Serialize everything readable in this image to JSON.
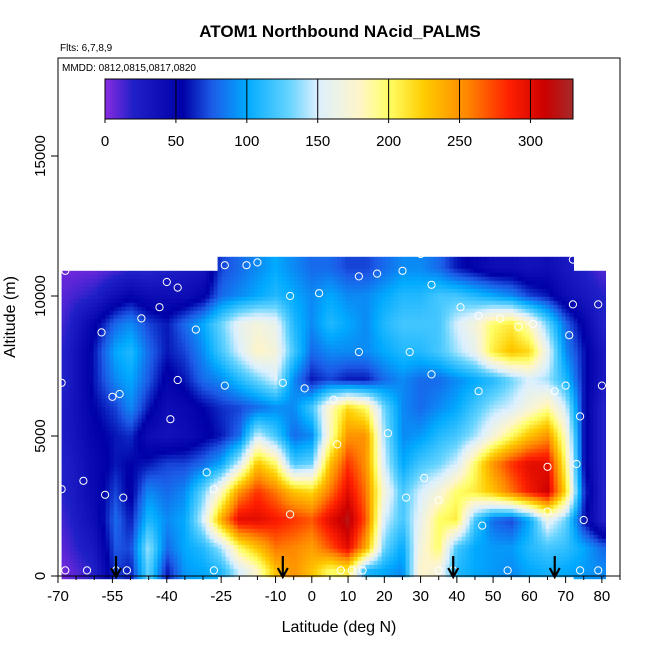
{
  "chart_data": {
    "type": "heatmap",
    "title": "ATOM1 Northbound NAcid_PALMS",
    "flights_note": "Flts: 6,7,8,9",
    "dates_note": "MMDD: 0812,0815,0817,0820",
    "xlabel": "Latitude (deg N)",
    "ylabel": "Altitude (m)",
    "xlim": [
      -70,
      85
    ],
    "ylim": [
      0,
      18500
    ],
    "x_ticks": [
      "-70",
      "-55",
      "-40",
      "-25",
      "-10",
      "0",
      "10",
      "20",
      "30",
      "40",
      "50",
      "60",
      "70",
      "80"
    ],
    "x_tick_values": [
      -70,
      -55,
      -40,
      -25,
      -10,
      0,
      10,
      20,
      30,
      40,
      50,
      60,
      70,
      80
    ],
    "x_minor_ticks": [
      -65,
      -60,
      -50,
      -45,
      -35,
      -30,
      -20,
      -15,
      -5,
      5,
      15,
      25,
      35,
      45,
      55,
      65,
      75,
      85
    ],
    "y_ticks": [
      "0",
      "5000",
      "10000",
      "15000"
    ],
    "y_tick_values": [
      0,
      5000,
      10000,
      15000
    ],
    "colorbar": {
      "range": [
        0,
        330
      ],
      "ticks": [
        "0",
        "50",
        "100",
        "150",
        "200",
        "250",
        "300"
      ],
      "tick_values": [
        0,
        50,
        100,
        150,
        200,
        250,
        300
      ]
    },
    "color_stops": [
      {
        "v": 0,
        "c": "#8a2be2"
      },
      {
        "v": 20,
        "c": "#2020c8"
      },
      {
        "v": 55,
        "c": "#0000a8"
      },
      {
        "v": 75,
        "c": "#1c5ae6"
      },
      {
        "v": 100,
        "c": "#00aaff"
      },
      {
        "v": 130,
        "c": "#66d4ff"
      },
      {
        "v": 150,
        "c": "#dcf0ff"
      },
      {
        "v": 180,
        "c": "#fff5c8"
      },
      {
        "v": 200,
        "c": "#ffff66"
      },
      {
        "v": 225,
        "c": "#ffcc00"
      },
      {
        "v": 255,
        "c": "#ff8800"
      },
      {
        "v": 285,
        "c": "#ff2000"
      },
      {
        "v": 310,
        "c": "#cc0000"
      },
      {
        "v": 330,
        "c": "#a52a2a"
      }
    ],
    "grid_lat": [
      -68,
      -60,
      -54,
      -50,
      -45,
      -40,
      -35,
      -30,
      -25,
      -20,
      -15,
      -10,
      -5,
      0,
      5,
      10,
      15,
      20,
      25,
      30,
      35,
      40,
      45,
      50,
      55,
      60,
      65,
      70,
      75,
      80
    ],
    "grid_alt": [
      200,
      1000,
      2000,
      3000,
      4000,
      5000,
      6000,
      7000,
      8000,
      9000,
      10000,
      11000
    ],
    "values": [
      [
        5,
        20,
        70,
        60,
        130,
        60,
        95,
        100,
        110,
        150,
        180,
        230,
        250,
        230,
        200,
        210,
        110,
        100,
        90,
        180,
        170,
        110,
        100,
        95,
        90,
        100,
        105,
        100,
        95,
        90
      ],
      [
        10,
        30,
        75,
        70,
        140,
        80,
        100,
        110,
        140,
        200,
        230,
        260,
        255,
        245,
        270,
        300,
        240,
        130,
        100,
        170,
        200,
        120,
        100,
        95,
        95,
        110,
        120,
        115,
        100,
        80
      ],
      [
        15,
        40,
        80,
        60,
        110,
        90,
        100,
        150,
        240,
        300,
        300,
        290,
        280,
        270,
        300,
        320,
        270,
        150,
        120,
        160,
        200,
        210,
        120,
        80,
        70,
        100,
        160,
        130,
        60,
        20
      ],
      [
        20,
        45,
        70,
        50,
        90,
        80,
        90,
        130,
        180,
        250,
        280,
        260,
        230,
        220,
        260,
        300,
        260,
        170,
        120,
        150,
        170,
        200,
        210,
        230,
        260,
        290,
        310,
        220,
        70,
        20
      ],
      [
        20,
        45,
        60,
        55,
        60,
        70,
        70,
        80,
        100,
        150,
        230,
        200,
        120,
        130,
        230,
        280,
        250,
        150,
        100,
        120,
        130,
        150,
        200,
        250,
        280,
        300,
        300,
        200,
        60,
        20
      ],
      [
        25,
        50,
        60,
        65,
        40,
        35,
        40,
        50,
        60,
        80,
        150,
        120,
        80,
        90,
        180,
        250,
        250,
        140,
        90,
        95,
        110,
        120,
        140,
        170,
        200,
        230,
        250,
        180,
        60,
        20
      ],
      [
        25,
        55,
        70,
        90,
        60,
        40,
        45,
        55,
        65,
        70,
        80,
        90,
        90,
        120,
        180,
        220,
        200,
        130,
        90,
        80,
        90,
        100,
        120,
        140,
        150,
        170,
        190,
        150,
        60,
        20
      ],
      [
        20,
        60,
        90,
        100,
        75,
        50,
        60,
        80,
        90,
        110,
        130,
        150,
        90,
        60,
        70,
        60,
        60,
        80,
        90,
        80,
        80,
        90,
        100,
        110,
        130,
        150,
        140,
        110,
        60,
        30
      ],
      [
        20,
        60,
        100,
        110,
        80,
        60,
        70,
        90,
        120,
        150,
        180,
        170,
        120,
        80,
        90,
        90,
        90,
        100,
        110,
        110,
        120,
        140,
        160,
        210,
        230,
        220,
        160,
        90,
        60,
        30
      ],
      [
        15,
        50,
        80,
        90,
        70,
        60,
        80,
        100,
        130,
        160,
        170,
        160,
        110,
        90,
        110,
        100,
        90,
        110,
        120,
        120,
        120,
        150,
        170,
        200,
        210,
        180,
        130,
        80,
        50,
        20
      ],
      [
        10,
        20,
        40,
        50,
        40,
        40,
        40,
        50,
        80,
        90,
        100,
        110,
        100,
        90,
        100,
        90,
        90,
        100,
        110,
        110,
        120,
        120,
        110,
        100,
        90,
        70,
        60,
        40,
        30,
        20
      ],
      [
        5,
        5,
        10,
        15,
        15,
        20,
        25,
        30,
        70,
        80,
        90,
        100,
        90,
        80,
        80,
        70,
        70,
        80,
        90,
        90,
        80,
        60,
        50,
        40,
        40,
        35,
        40,
        30,
        20,
        10
      ]
    ],
    "points": [
      [
        -68,
        10900
      ],
      [
        -69,
        6900
      ],
      [
        -69,
        3100
      ],
      [
        -68,
        200
      ],
      [
        -62,
        200
      ],
      [
        -63,
        3400
      ],
      [
        -57,
        2900
      ],
      [
        -54,
        200
      ],
      [
        -52,
        2800
      ],
      [
        -51,
        200
      ],
      [
        -55,
        6400
      ],
      [
        -53,
        6500
      ],
      [
        -58,
        8700
      ],
      [
        -47,
        9200
      ],
      [
        -42,
        9600
      ],
      [
        -40,
        10500
      ],
      [
        -37,
        10300
      ],
      [
        -39,
        5600
      ],
      [
        -37,
        7000
      ],
      [
        -32,
        8800
      ],
      [
        -29,
        3700
      ],
      [
        -27,
        3100
      ],
      [
        -27,
        200
      ],
      [
        -24,
        6800
      ],
      [
        -24,
        11100
      ],
      [
        -18,
        11100
      ],
      [
        -15,
        11200
      ],
      [
        -6,
        10000
      ],
      [
        -8,
        6900
      ],
      [
        -6,
        2200
      ],
      [
        -2,
        6700
      ],
      [
        2,
        10100
      ],
      [
        6,
        6300
      ],
      [
        7,
        4700
      ],
      [
        8,
        200
      ],
      [
        11,
        200
      ],
      [
        14,
        200
      ],
      [
        13,
        8000
      ],
      [
        13,
        10700
      ],
      [
        18,
        10800
      ],
      [
        21,
        5100
      ],
      [
        25,
        10900
      ],
      [
        26,
        2800
      ],
      [
        27,
        8000
      ],
      [
        30,
        11500
      ],
      [
        31,
        3500
      ],
      [
        33,
        7200
      ],
      [
        33,
        10400
      ],
      [
        35,
        2700
      ],
      [
        35,
        200
      ],
      [
        39,
        200
      ],
      [
        41,
        9600
      ],
      [
        46,
        6600
      ],
      [
        46,
        9300
      ],
      [
        47,
        1800
      ],
      [
        52,
        9200
      ],
      [
        54,
        200
      ],
      [
        57,
        8900
      ],
      [
        61,
        9000
      ],
      [
        65,
        3900
      ],
      [
        65,
        2300
      ],
      [
        67,
        6600
      ],
      [
        70,
        6800
      ],
      [
        71,
        8600
      ],
      [
        72,
        9700
      ],
      [
        72,
        11300
      ],
      [
        73,
        4000
      ],
      [
        74,
        5700
      ],
      [
        75,
        2000
      ],
      [
        74,
        200
      ],
      [
        80,
        6800
      ],
      [
        79,
        9700
      ],
      [
        79,
        200
      ]
    ],
    "arrows": [
      -54,
      -8,
      39,
      67
    ]
  }
}
